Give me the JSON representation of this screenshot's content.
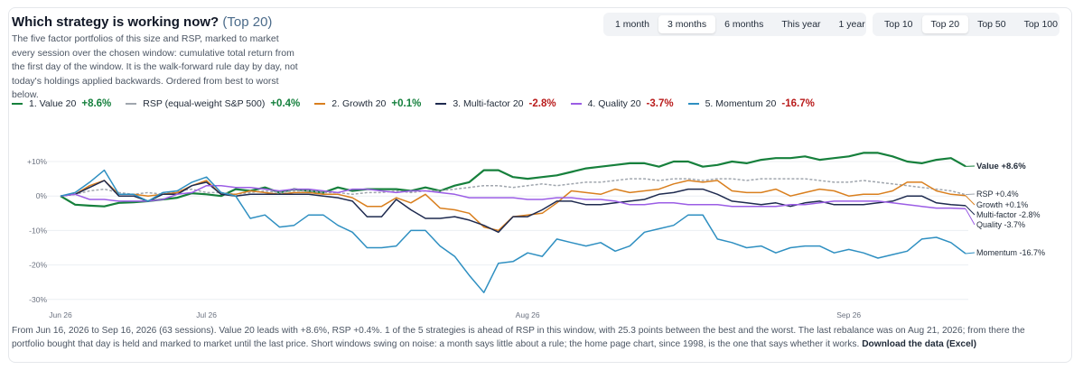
{
  "header": {
    "title": "Which strategy is working now?",
    "subtitle": "(Top 20)",
    "description": "The five factor portfolios of this size and RSP, marked to market every session over the chosen window: cumulative total return from the first day of the window. It is the walk-forward rule day by day, not today's holdings applied backwards. Ordered from best to worst below."
  },
  "period_buttons": [
    {
      "label": "1 month",
      "active": false
    },
    {
      "label": "3 months",
      "active": true
    },
    {
      "label": "6 months",
      "active": false
    },
    {
      "label": "This year",
      "active": false
    },
    {
      "label": "1 year",
      "active": false
    }
  ],
  "size_buttons": [
    {
      "label": "Top 10",
      "active": false
    },
    {
      "label": "Top 20",
      "active": true
    },
    {
      "label": "Top 50",
      "active": false
    },
    {
      "label": "Top 100",
      "active": false
    }
  ],
  "legend": [
    {
      "label": "1. Value 20",
      "value": "+8.6%",
      "color": "#16803c",
      "dashed": false,
      "sign": "pos"
    },
    {
      "label": "RSP (equal-weight S&P 500)",
      "value": "+0.4%",
      "color": "#a0a6ae",
      "dashed": true,
      "sign": "pos"
    },
    {
      "label": "2. Growth 20",
      "value": "+0.1%",
      "color": "#d97f1e",
      "dashed": false,
      "sign": "pos"
    },
    {
      "label": "3. Multi-factor 20",
      "value": "-2.8%",
      "color": "#1e2a4f",
      "dashed": false,
      "sign": "neg"
    },
    {
      "label": "4. Quality 20",
      "value": "-3.7%",
      "color": "#9b5de5",
      "dashed": false,
      "sign": "neg"
    },
    {
      "label": "5. Momentum 20",
      "value": "-16.7%",
      "color": "#2e8fc1",
      "dashed": false,
      "sign": "neg"
    }
  ],
  "chart_data": {
    "type": "line",
    "x_axis_ticks": [
      "Jun 26",
      "Jul 26",
      "Aug 26",
      "Sep 26"
    ],
    "y_axis_ticks": [
      "+10%",
      "0%",
      "-10%",
      "-20%",
      "-30%"
    ],
    "ylim": [
      -30,
      10
    ],
    "sessions": 63,
    "series": [
      {
        "name": "Value",
        "end_label": "Value  +8.6%",
        "color": "#16803c",
        "dashed": false,
        "values": [
          0,
          -2.5,
          -2.8,
          -3.0,
          -2.0,
          -1.8,
          -1.5,
          -1.0,
          -0.5,
          0.8,
          0.5,
          0,
          2.0,
          1.5,
          2.5,
          1.0,
          2.0,
          1.5,
          1.0,
          2.5,
          1.5,
          2.0,
          2.0,
          2.0,
          1.5,
          2.5,
          1.5,
          3.0,
          4.0,
          7.5,
          7.5,
          5.5,
          5.0,
          5.5,
          6.0,
          7.0,
          8.0,
          8.5,
          9.0,
          9.5,
          9.5,
          8.5,
          10.0,
          10.0,
          8.5,
          9.0,
          10.0,
          9.5,
          10.5,
          11.0,
          11.0,
          11.5,
          10.5,
          11.0,
          11.5,
          12.5,
          12.5,
          11.5,
          10.0,
          9.5,
          10.5,
          11.0,
          8.6
        ]
      },
      {
        "name": "RSP",
        "end_label": "RSP  +0.4%",
        "color": "#a0a6ae",
        "dashed": true,
        "values": [
          0,
          0.5,
          1.5,
          2.0,
          1.0,
          0.5,
          1.0,
          0.5,
          1.5,
          2.0,
          1.0,
          1.0,
          0.5,
          1.0,
          1.5,
          1.0,
          1.5,
          1.5,
          1.0,
          1.0,
          0.5,
          1.0,
          1.0,
          1.5,
          1.0,
          1.5,
          1.5,
          2.0,
          2.5,
          3.0,
          3.0,
          2.5,
          3.0,
          3.5,
          3.0,
          3.5,
          4.0,
          4.0,
          4.5,
          5.0,
          5.0,
          4.5,
          5.0,
          5.0,
          4.5,
          5.0,
          5.0,
          4.5,
          5.0,
          5.0,
          5.0,
          5.0,
          4.5,
          4.0,
          4.0,
          4.5,
          4.0,
          3.5,
          3.0,
          2.5,
          2.0,
          1.5,
          0.4
        ]
      },
      {
        "name": "Growth",
        "end_label": "Growth  +0.1%",
        "color": "#d97f1e",
        "dashed": false,
        "values": [
          0,
          0.5,
          3.0,
          4.5,
          0.5,
          0.5,
          0.0,
          0.5,
          1.0,
          3.0,
          4.5,
          0.5,
          0.5,
          1.5,
          1.0,
          0.5,
          1.0,
          1.0,
          0.5,
          0.5,
          -0.5,
          -3.0,
          -3.0,
          -0.5,
          -2.0,
          0.5,
          -3.5,
          -4.0,
          -5.0,
          -9.0,
          -10.0,
          -6.0,
          -5.5,
          -5.0,
          -2.0,
          1.5,
          1.0,
          0.5,
          2.0,
          1.0,
          1.5,
          2.0,
          3.5,
          4.5,
          4.0,
          4.5,
          1.5,
          1.0,
          1.0,
          2.0,
          0,
          1.0,
          2.0,
          1.5,
          0,
          0.5,
          0.5,
          1.5,
          4.0,
          4.0,
          1.5,
          0.5,
          0.1
        ]
      },
      {
        "name": "Multi-factor",
        "end_label": "Multi-factor  -2.8%",
        "color": "#1e2a4f",
        "dashed": false,
        "values": [
          0,
          0.5,
          2.5,
          4.5,
          0.0,
          0.0,
          -1.5,
          0.5,
          0.5,
          3.0,
          4.0,
          0.5,
          0,
          0.5,
          0.5,
          0.5,
          0.5,
          0.5,
          0,
          -0.5,
          -1.5,
          -6.0,
          -6.0,
          -1.0,
          -4.0,
          -6.5,
          -6.5,
          -6.0,
          -7.0,
          -8.5,
          -10.5,
          -6.0,
          -6.0,
          -4.0,
          -1.5,
          -1.5,
          -2.5,
          -2.5,
          -2.0,
          -1.5,
          -1.0,
          0.5,
          1.0,
          2.0,
          2.0,
          0.5,
          -1.5,
          -2.0,
          -2.5,
          -2.0,
          -3.0,
          -2.0,
          -1.5,
          -2.5,
          -2.5,
          -2.5,
          -2.0,
          -1.5,
          0,
          0,
          -2.0,
          -2.5,
          -2.8
        ]
      },
      {
        "name": "Quality",
        "end_label": "Quality  -3.7%",
        "color": "#9b5de5",
        "dashed": false,
        "values": [
          0,
          0.5,
          -1.0,
          -1.0,
          -1.5,
          -1.5,
          -1.5,
          -1.0,
          0.5,
          1.0,
          3.0,
          3.0,
          2.5,
          2.5,
          2.0,
          1.5,
          2.0,
          2.0,
          1.5,
          1.0,
          2.0,
          2.0,
          1.5,
          1.0,
          1.5,
          1.5,
          1.0,
          0.5,
          -0.5,
          -0.5,
          -0.5,
          -0.5,
          -1.0,
          -1.0,
          -0.5,
          -0.5,
          -1.0,
          -1.0,
          -1.5,
          -2.5,
          -2.5,
          -2.0,
          -2.0,
          -2.5,
          -2.5,
          -2.5,
          -3.0,
          -3.0,
          -3.0,
          -3.0,
          -2.5,
          -2.5,
          -2.0,
          -1.5,
          -1.5,
          -1.5,
          -1.5,
          -2.0,
          -2.5,
          -3.0,
          -3.5,
          -3.5,
          -3.7
        ]
      },
      {
        "name": "Momentum",
        "end_label": "Momentum  -16.7%",
        "color": "#2e8fc1",
        "dashed": false,
        "values": [
          0,
          1.0,
          4.0,
          7.5,
          0.5,
          0.5,
          -1.5,
          1.0,
          1.5,
          4.0,
          5.5,
          1.0,
          0,
          -6.5,
          -5.5,
          -9.0,
          -8.5,
          -5.5,
          -5.5,
          -8.5,
          -10.5,
          -15.0,
          -15.0,
          -14.5,
          -10.0,
          -10.0,
          -14.5,
          -17.5,
          -23.0,
          -28.0,
          -19.5,
          -19.0,
          -16.5,
          -17.5,
          -12.5,
          -13.5,
          -14.5,
          -13.5,
          -16.0,
          -14.5,
          -10.5,
          -9.5,
          -8.5,
          -5.5,
          -5.5,
          -12.5,
          -13.5,
          -15.0,
          -14.5,
          -16.5,
          -15.0,
          -14.5,
          -14.5,
          -16.5,
          -15.5,
          -16.5,
          -18.0,
          -17.0,
          -16.0,
          -12.5,
          -12.0,
          -13.5,
          -16.7
        ]
      }
    ]
  },
  "footer": {
    "text": "From Jun 16, 2026 to Sep 16, 2026 (63 sessions). Value 20 leads with +8.6%, RSP +0.4%. 1 of the 5 strategies is ahead of RSP in this window, with 25.3 points between the best and the worst. The last rebalance was on Aug 21, 2026; from there the portfolio bought that day is held and marked to market until the last price. Short windows swing on noise: a month says little about a rule; the home page chart, since 1998, is the one that says whether it works.",
    "link": "Download the data (Excel)"
  }
}
